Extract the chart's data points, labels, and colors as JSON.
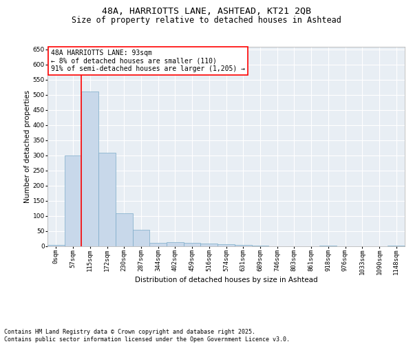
{
  "title1": "48A, HARRIOTTS LANE, ASHTEAD, KT21 2QB",
  "title2": "Size of property relative to detached houses in Ashtead",
  "xlabel": "Distribution of detached houses by size in Ashtead",
  "ylabel": "Number of detached properties",
  "bin_labels": [
    "0sqm",
    "57sqm",
    "115sqm",
    "172sqm",
    "230sqm",
    "287sqm",
    "344sqm",
    "402sqm",
    "459sqm",
    "516sqm",
    "574sqm",
    "631sqm",
    "689sqm",
    "746sqm",
    "803sqm",
    "861sqm",
    "918sqm",
    "976sqm",
    "1033sqm",
    "1090sqm",
    "1148sqm"
  ],
  "bar_heights": [
    4,
    300,
    510,
    308,
    108,
    53,
    11,
    13,
    11,
    8,
    6,
    4,
    1,
    0,
    0,
    0,
    1,
    0,
    0,
    0,
    1
  ],
  "bar_color": "#c8d8ea",
  "bar_edge_color": "#7aaac8",
  "vline_color": "red",
  "annotation_text": "48A HARRIOTTS LANE: 93sqm\n← 8% of detached houses are smaller (110)\n91% of semi-detached houses are larger (1,205) →",
  "annotation_box_color": "white",
  "annotation_box_edge": "red",
  "ylim": [
    0,
    660
  ],
  "yticks": [
    0,
    50,
    100,
    150,
    200,
    250,
    300,
    350,
    400,
    450,
    500,
    550,
    600,
    650
  ],
  "bg_color": "#e8eef4",
  "footer": "Contains HM Land Registry data © Crown copyright and database right 2025.\nContains public sector information licensed under the Open Government Licence v3.0.",
  "title_fontsize": 9.5,
  "subtitle_fontsize": 8.5,
  "ylabel_fontsize": 7.5,
  "xlabel_fontsize": 7.5,
  "tick_fontsize": 6.5,
  "annot_fontsize": 7,
  "footer_fontsize": 6
}
